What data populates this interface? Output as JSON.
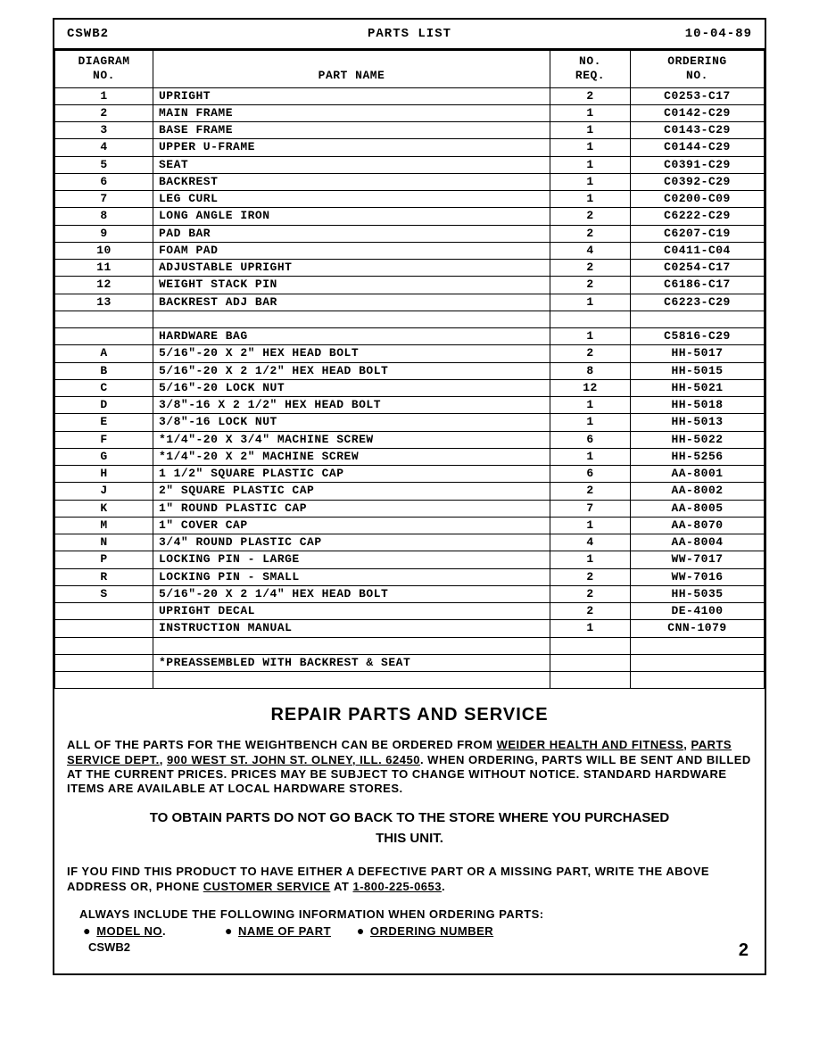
{
  "header": {
    "model": "CSWB2",
    "title": "PARTS LIST",
    "date": "10-04-89"
  },
  "columns": {
    "diag": "DIAGRAM NO.",
    "name": "PART NAME",
    "req": "NO. REQ.",
    "ord": "ORDERING NO."
  },
  "rows": [
    {
      "diag": "1",
      "name": "UPRIGHT",
      "req": "2",
      "ord": "C0253-C17"
    },
    {
      "diag": "2",
      "name": "MAIN FRAME",
      "req": "1",
      "ord": "C0142-C29"
    },
    {
      "diag": "3",
      "name": "BASE FRAME",
      "req": "1",
      "ord": "C0143-C29"
    },
    {
      "diag": "4",
      "name": "UPPER U-FRAME",
      "req": "1",
      "ord": "C0144-C29"
    },
    {
      "diag": "5",
      "name": "SEAT",
      "req": "1",
      "ord": "C0391-C29"
    },
    {
      "diag": "6",
      "name": "BACKREST",
      "req": "1",
      "ord": "C0392-C29"
    },
    {
      "diag": "7",
      "name": "LEG CURL",
      "req": "1",
      "ord": "C0200-C09"
    },
    {
      "diag": "8",
      "name": "LONG ANGLE IRON",
      "req": "2",
      "ord": "C6222-C29"
    },
    {
      "diag": "9",
      "name": "PAD BAR",
      "req": "2",
      "ord": "C6207-C19"
    },
    {
      "diag": "10",
      "name": "FOAM PAD",
      "req": "4",
      "ord": "C0411-C04"
    },
    {
      "diag": "11",
      "name": "ADJUSTABLE UPRIGHT",
      "req": "2",
      "ord": "C0254-C17"
    },
    {
      "diag": "12",
      "name": "WEIGHT STACK PIN",
      "req": "2",
      "ord": "C6186-C17"
    },
    {
      "diag": "13",
      "name": "BACKREST ADJ BAR",
      "req": "1",
      "ord": "C6223-C29"
    },
    {
      "diag": "",
      "name": "",
      "req": "",
      "ord": ""
    },
    {
      "diag": "",
      "name": "HARDWARE BAG",
      "req": "1",
      "ord": "C5816-C29"
    },
    {
      "diag": "A",
      "name": "5/16\"-20 X 2\" HEX HEAD BOLT",
      "req": "2",
      "ord": "HH-5017"
    },
    {
      "diag": "B",
      "name": "5/16\"-20 X 2 1/2\" HEX HEAD BOLT",
      "req": "8",
      "ord": "HH-5015"
    },
    {
      "diag": "C",
      "name": "5/16\"-20 LOCK NUT",
      "req": "12",
      "ord": "HH-5021"
    },
    {
      "diag": "D",
      "name": "3/8\"-16 X 2 1/2\" HEX HEAD BOLT",
      "req": "1",
      "ord": "HH-5018"
    },
    {
      "diag": "E",
      "name": "3/8\"-16 LOCK NUT",
      "req": "1",
      "ord": "HH-5013"
    },
    {
      "diag": "F",
      "name": "*1/4\"-20 X 3/4\" MACHINE SCREW",
      "req": "6",
      "ord": "HH-5022"
    },
    {
      "diag": "G",
      "name": "*1/4\"-20 X 2\" MACHINE SCREW",
      "req": "1",
      "ord": "HH-5256"
    },
    {
      "diag": "H",
      "name": "1 1/2\" SQUARE PLASTIC CAP",
      "req": "6",
      "ord": "AA-8001"
    },
    {
      "diag": "J",
      "name": "2\" SQUARE PLASTIC CAP",
      "req": "2",
      "ord": "AA-8002"
    },
    {
      "diag": "K",
      "name": "1\" ROUND PLASTIC CAP",
      "req": "7",
      "ord": "AA-8005"
    },
    {
      "diag": "M",
      "name": "1\" COVER CAP",
      "req": "1",
      "ord": "AA-8070"
    },
    {
      "diag": "N",
      "name": "3/4\" ROUND PLASTIC CAP",
      "req": "4",
      "ord": "AA-8004"
    },
    {
      "diag": "P",
      "name": "LOCKING PIN - LARGE",
      "req": "1",
      "ord": "WW-7017"
    },
    {
      "diag": "R",
      "name": "LOCKING PIN - SMALL",
      "req": "2",
      "ord": "WW-7016"
    },
    {
      "diag": "S",
      "name": "5/16\"-20 X 2 1/4\" HEX HEAD BOLT",
      "req": "2",
      "ord": "HH-5035"
    },
    {
      "diag": "",
      "name": "UPRIGHT DECAL",
      "req": "2",
      "ord": "DE-4100"
    },
    {
      "diag": "",
      "name": "INSTRUCTION MANUAL",
      "req": "1",
      "ord": "CNN-1079"
    },
    {
      "diag": "",
      "name": "",
      "req": "",
      "ord": ""
    },
    {
      "diag": "",
      "name": "*PREASSEMBLED WITH BACKREST & SEAT",
      "req": "",
      "ord": ""
    },
    {
      "diag": "",
      "name": "",
      "req": "",
      "ord": ""
    }
  ],
  "service": {
    "heading": "REPAIR PARTS AND SERVICE",
    "para1_a": "ALL OF THE PARTS FOR THE WEIGHTBENCH CAN BE ORDERED FROM ",
    "para1_u1": "WEIDER HEALTH AND FITNESS",
    "para1_b": ", ",
    "para1_u2": "PARTS SERVICE DEPT.",
    "para1_c": ",  ",
    "para1_u3": "900 WEST ST. JOHN ST.  OLNEY, ILL. 62450",
    "para1_d": ".  WHEN ORDERING, PARTS WILL BE SENT AND BILLED AT THE CURRENT PRICES.  PRICES MAY BE SUBJECT TO CHANGE WITHOUT NOTICE.  STANDARD HARDWARE ITEMS ARE AVAILABLE AT LOCAL HARDWARE STORES.",
    "notice": "TO OBTAIN PARTS DO NOT GO BACK TO THE STORE WHERE YOU PURCHASED THIS UNIT.",
    "para2_a": "IF YOU FIND THIS PRODUCT TO HAVE EITHER A DEFECTIVE PART OR A MISSING PART, WRITE THE ABOVE ADDRESS OR, PHONE ",
    "para2_u1": "CUSTOMER SERVICE",
    "para2_b": " AT ",
    "para2_u2": "1-800-225-0653",
    "para2_c": ".",
    "order_label": "ALWAYS INCLUDE THE FOLLOWING INFORMATION WHEN ORDERING PARTS:",
    "order_item1": "MODEL NO",
    "order_item2": "NAME OF PART",
    "order_item3": "ORDERING NUMBER",
    "footer_model": "CSWB2",
    "page": "2"
  }
}
